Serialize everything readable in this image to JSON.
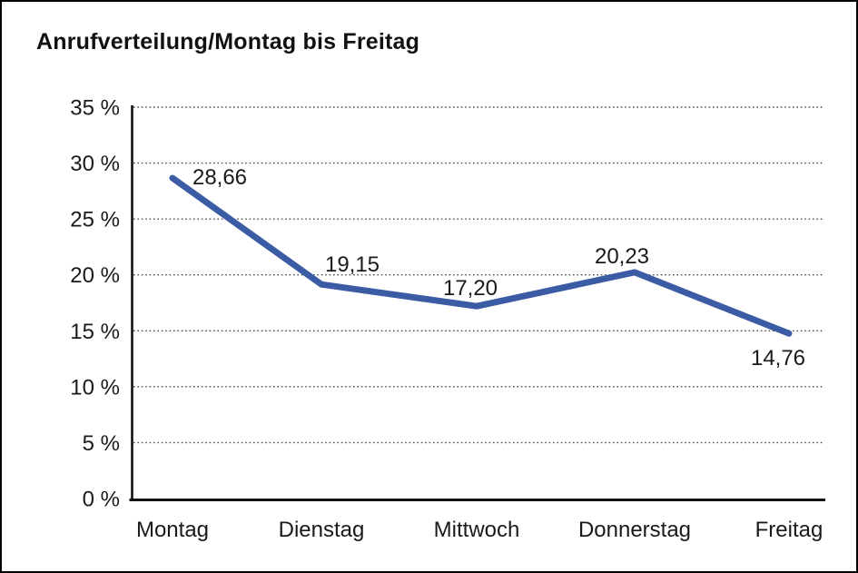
{
  "window": {
    "background_color": "#ffffff",
    "border_color": "#000000"
  },
  "chart_data": {
    "type": "line",
    "title": "Anrufverteilung/Montag bis Freitag",
    "categories": [
      "Montag",
      "Dienstag",
      "Mittwoch",
      "Donnerstag",
      "Freitag"
    ],
    "values": [
      28.66,
      19.15,
      17.2,
      20.23,
      14.76
    ],
    "point_labels": [
      "28,66",
      "19,15",
      "17,20",
      "20,23",
      "14,76"
    ],
    "y_axis": {
      "min": 0,
      "max": 35,
      "step": 5,
      "tick_values": [
        35,
        30,
        25,
        20,
        15,
        10,
        5,
        0
      ],
      "tick_labels": [
        "35 %",
        "30 %",
        "25 %",
        "20 %",
        "15 %",
        "10 %",
        "5 %",
        "0 %"
      ],
      "unit": "%"
    },
    "xlabel": "",
    "ylabel": "",
    "legend": "none",
    "grid": "horizontal-dotted",
    "line_color": "#3B5BA5",
    "axis_color": "#111111",
    "gridline_color": "#4d4d4d",
    "text_color": "#1a1a1a"
  }
}
